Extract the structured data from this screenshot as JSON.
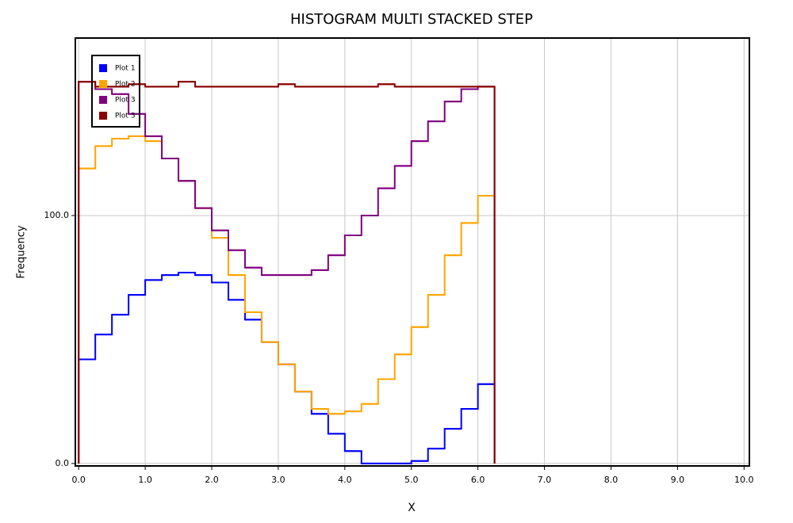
{
  "chart_data": {
    "type": "stacked-step-histogram",
    "title": "HISTOGRAM MULTI STACKED STEP",
    "xlabel": "X",
    "ylabel": "Frequency",
    "bins": [
      0,
      0.25,
      0.5,
      0.75,
      1,
      1.25,
      1.5,
      1.75,
      2,
      2.25,
      2.5,
      2.75,
      3,
      3.25,
      3.5,
      3.75,
      4,
      4.25,
      4.5,
      4.75,
      5,
      5.25,
      5.5,
      5.75,
      6,
      6.25
    ],
    "series": [
      {
        "name": "Plot 1",
        "color": "#0000ff",
        "values": [
          42,
          52,
          60,
          68,
          74,
          76,
          77,
          76,
          73,
          66,
          58,
          49,
          40,
          29,
          20,
          12,
          5,
          0,
          0,
          0,
          1,
          6,
          14,
          22,
          32
        ]
      },
      {
        "name": "Plot 2",
        "color": "#ffa500",
        "values": [
          77,
          76,
          71,
          64,
          56,
          47,
          37,
          27,
          18,
          10,
          3,
          0,
          0,
          0,
          2,
          8,
          16,
          24,
          34,
          44,
          54,
          62,
          70,
          75,
          76
        ]
      },
      {
        "name": "Plot 3",
        "color": "#800080",
        "values": [
          35,
          23,
          18,
          9,
          2,
          0,
          0,
          0,
          3,
          10,
          18,
          27,
          36,
          47,
          56,
          64,
          71,
          76,
          77,
          76,
          75,
          70,
          62,
          54,
          44
        ]
      },
      {
        "name": "Plot 3",
        "color": "#8b0000",
        "values": [
          0,
          1,
          3,
          12,
          20,
          29,
          40,
          49,
          58,
          66,
          73,
          76,
          77,
          76,
          74,
          68,
          60,
          52,
          42,
          32,
          22,
          14,
          6,
          1,
          0
        ]
      }
    ],
    "xlim": [
      -0.05,
      10.08
    ],
    "ylim": [
      -1,
      171.6
    ],
    "xticks": [
      {
        "value": 0,
        "label": "0.0"
      },
      {
        "value": 1,
        "label": "1.0"
      },
      {
        "value": 2,
        "label": "2.0"
      },
      {
        "value": 3,
        "label": "3.0"
      },
      {
        "value": 4,
        "label": "4.0"
      },
      {
        "value": 5,
        "label": "5.0"
      },
      {
        "value": 6,
        "label": "6.0"
      },
      {
        "value": 7,
        "label": "7.0"
      },
      {
        "value": 8,
        "label": "8.0"
      },
      {
        "value": 9,
        "label": "9.0"
      },
      {
        "value": 10,
        "label": "10.0"
      }
    ],
    "yticks": [
      {
        "value": 0,
        "label": "0.0"
      },
      {
        "value": 100,
        "label": "100.0"
      }
    ],
    "grid": true,
    "legend": "upper-left"
  }
}
